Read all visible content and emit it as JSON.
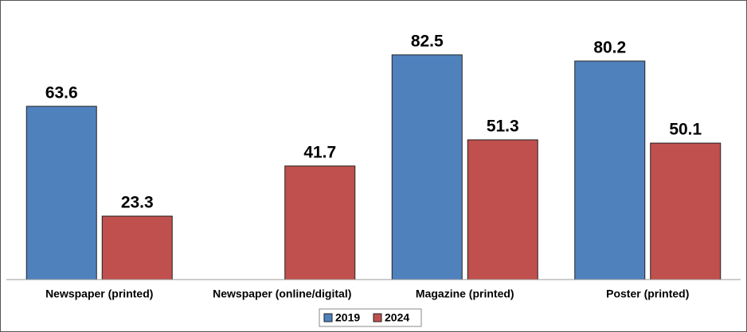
{
  "chart_data": {
    "type": "bar",
    "categories": [
      "Newspaper (printed)",
      "Newspaper (online/digital)",
      "Magazine (printed)",
      "Poster (printed)"
    ],
    "series": [
      {
        "name": "2019",
        "color": "#4f81bd",
        "values": [
          63.6,
          null,
          82.5,
          80.2
        ]
      },
      {
        "name": "2024",
        "color": "#c0504d",
        "values": [
          23.3,
          41.7,
          51.3,
          50.1
        ]
      }
    ],
    "legend": "bottom"
  }
}
